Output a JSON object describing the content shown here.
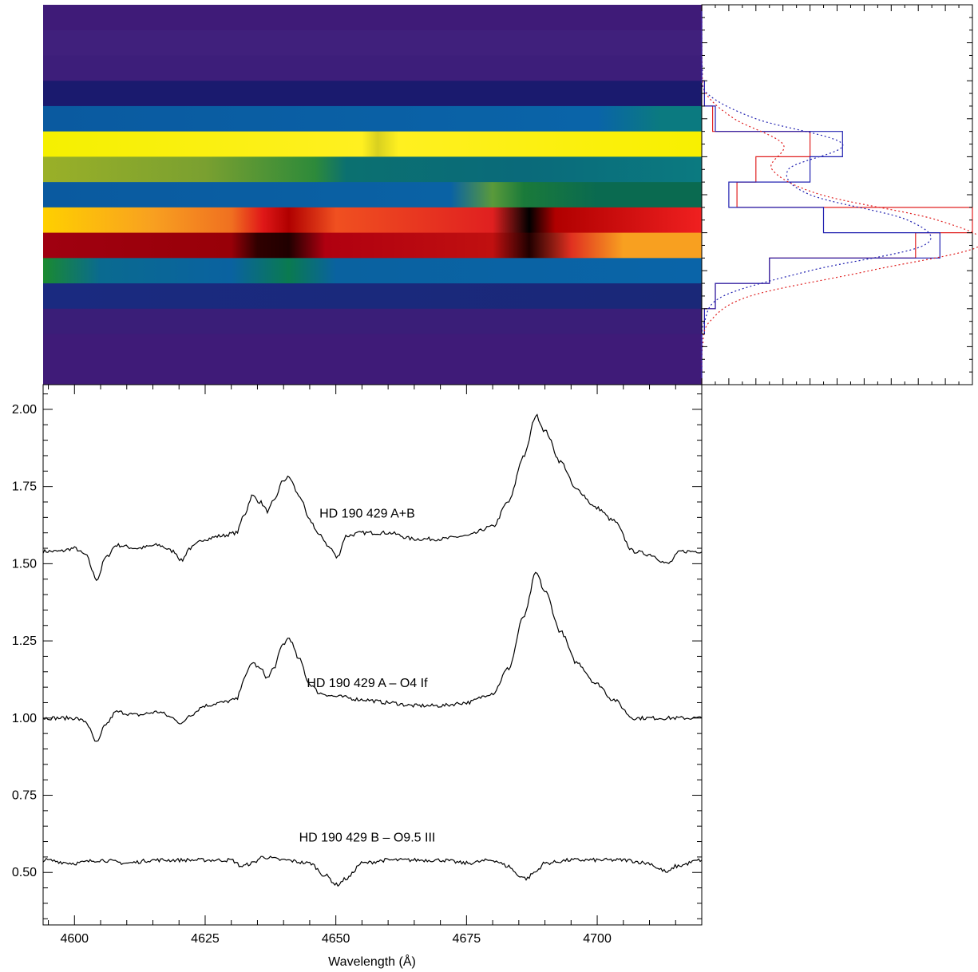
{
  "chart_data": [
    {
      "type": "heatmap",
      "xlim": [
        4594,
        4720
      ],
      "rows": [
        {
          "segments": [
            [
              4594,
              "#3f1b78"
            ],
            [
              4720,
              "#3f1b78"
            ]
          ]
        },
        {
          "segments": [
            [
              4594,
              "#40207c"
            ],
            [
              4720,
              "#40207c"
            ]
          ]
        },
        {
          "segments": [
            [
              4594,
              "#3d1e7a"
            ],
            [
              4720,
              "#3d1e7a"
            ]
          ]
        },
        {
          "segments": [
            [
              4594,
              "#1a1a6e"
            ],
            [
              4720,
              "#1a1a6e"
            ]
          ]
        },
        {
          "segments": [
            [
              4594,
              "#0a5aa0"
            ],
            [
              4700,
              "#0a64a8"
            ],
            [
              4712,
              "#0b7a80"
            ],
            [
              4720,
              "#0b7a80"
            ]
          ]
        },
        {
          "segments": [
            [
              4594,
              "#f5f000"
            ],
            [
              4655,
              "#fff020"
            ],
            [
              4658,
              "#d8d020"
            ],
            [
              4662,
              "#fff020"
            ],
            [
              4720,
              "#f8f000"
            ]
          ]
        },
        {
          "segments": [
            [
              4594,
              "#9ab028"
            ],
            [
              4625,
              "#7aa030"
            ],
            [
              4646,
              "#2d8a3a"
            ],
            [
              4652,
              "#0b7070"
            ],
            [
              4686,
              "#0a6a7a"
            ],
            [
              4720,
              "#0b7a80"
            ]
          ]
        },
        {
          "segments": [
            [
              4594,
              "#0a5aa0"
            ],
            [
              4672,
              "#0a62a4"
            ],
            [
              4680,
              "#5a9a3a"
            ],
            [
              4686,
              "#1a7a3a"
            ],
            [
              4700,
              "#0a6a50"
            ],
            [
              4720,
              "#0a6a50"
            ]
          ]
        },
        {
          "segments": [
            [
              4594,
              "#ffd000"
            ],
            [
              4615,
              "#f8a020"
            ],
            [
              4630,
              "#f07020"
            ],
            [
              4636,
              "#e01818"
            ],
            [
              4641,
              "#b00000"
            ],
            [
              4650,
              "#f05020"
            ],
            [
              4680,
              "#e02020"
            ],
            [
              4687,
              "#000000"
            ],
            [
              4692,
              "#b00000"
            ],
            [
              4720,
              "#f02020"
            ]
          ]
        },
        {
          "segments": [
            [
              4594,
              "#a00010"
            ],
            [
              4630,
              "#980008"
            ],
            [
              4635,
              "#300000"
            ],
            [
              4641,
              "#200000"
            ],
            [
              4648,
              "#b00010"
            ],
            [
              4680,
              "#c01010"
            ],
            [
              4687,
              "#200000"
            ],
            [
              4695,
              "#e03020"
            ],
            [
              4705,
              "#f8a020"
            ],
            [
              4720,
              "#f8a020"
            ]
          ]
        },
        {
          "segments": [
            [
              4594,
              "#1a8a30"
            ],
            [
              4605,
              "#0a6a90"
            ],
            [
              4630,
              "#0a62a0"
            ],
            [
              4641,
              "#0a7a50"
            ],
            [
              4650,
              "#0a62a0"
            ],
            [
              4720,
              "#0a64a8"
            ]
          ]
        },
        {
          "segments": [
            [
              4594,
              "#1a2a80"
            ],
            [
              4720,
              "#1a2878"
            ]
          ]
        },
        {
          "segments": [
            [
              4594,
              "#3a1e78"
            ],
            [
              4720,
              "#3a1e78"
            ]
          ]
        },
        {
          "segments": [
            [
              4594,
              "#3f1b78"
            ],
            [
              4720,
              "#3f1b78"
            ]
          ]
        },
        {
          "segments": [
            [
              4594,
              "#3f1b78"
            ],
            [
              4720,
              "#3f1b78"
            ]
          ]
        }
      ]
    },
    {
      "type": "line",
      "xlim": [
        0,
        1
      ],
      "ylim": [
        0,
        15
      ],
      "series": [
        {
          "color": "#e02020",
          "style": "step",
          "values": [
            0,
            0,
            0,
            0.01,
            0.04,
            0.4,
            0.2,
            0.13,
            1.0,
            0.79,
            0.25,
            0.05,
            0.01,
            0,
            0
          ]
        },
        {
          "color": "#2020b0",
          "style": "step",
          "values": [
            0,
            0,
            0,
            0.01,
            0.05,
            0.52,
            0.4,
            0.1,
            0.45,
            0.88,
            0.25,
            0.05,
            0.01,
            0,
            0
          ]
        },
        {
          "color": "#e02020",
          "style": "dotted",
          "values": [
            0,
            0,
            0.002,
            0.015,
            0.12,
            0.3,
            0.26,
            0.44,
            0.87,
            1.03,
            0.62,
            0.18,
            0.03,
            0.003,
            0
          ]
        },
        {
          "color": "#2020b0",
          "style": "dotted",
          "values": [
            0,
            0,
            0.002,
            0.02,
            0.2,
            0.52,
            0.32,
            0.4,
            0.76,
            0.82,
            0.4,
            0.08,
            0.01,
            0.001,
            0
          ]
        }
      ]
    },
    {
      "type": "line",
      "xlabel": "Wavelength (Å)",
      "xlim": [
        4594,
        4720
      ],
      "ylim": [
        0.33,
        2.08
      ],
      "xticks": [
        4600,
        4625,
        4650,
        4675,
        4700
      ],
      "yticks": [
        0.5,
        0.75,
        1.0,
        1.25,
        1.5,
        1.75,
        2.0
      ],
      "xtick_labels": [
        "4600",
        "4625",
        "4650",
        "4675",
        "4700"
      ],
      "ytick_labels": [
        "0.50",
        "0.75",
        "1.00",
        "1.25",
        "1.50",
        "1.75",
        "2.00"
      ],
      "annotations": [
        {
          "text": "HD 190 429 A+B",
          "x": 4656,
          "y": 1.65
        },
        {
          "text": "HD 190 429 A – O4 If",
          "x": 4656,
          "y": 1.1
        },
        {
          "text": "HD 190 429 B – O9.5 III",
          "x": 4656,
          "y": 0.6
        }
      ],
      "series": [
        {
          "name": "HD 190 429 A+B",
          "x": [
            4594,
            4597,
            4600,
            4602,
            4604.3,
            4606,
            4608,
            4612,
            4616,
            4619,
            4620.5,
            4622,
            4625,
            4628,
            4631,
            4632.5,
            4634,
            4635.5,
            4637,
            4638,
            4640,
            4641,
            4643,
            4645,
            4647,
            4649,
            4650.2,
            4652,
            4655,
            4660,
            4665,
            4670,
            4675,
            4680,
            4683,
            4686,
            4688.3,
            4690,
            4693,
            4696,
            4700,
            4703,
            4707,
            4710,
            4713.5,
            4716,
            4720
          ],
          "y": [
            1.54,
            1.54,
            1.55,
            1.53,
            1.45,
            1.52,
            1.56,
            1.55,
            1.56,
            1.54,
            1.51,
            1.55,
            1.58,
            1.59,
            1.6,
            1.66,
            1.72,
            1.7,
            1.67,
            1.7,
            1.77,
            1.78,
            1.72,
            1.64,
            1.59,
            1.55,
            1.52,
            1.59,
            1.6,
            1.6,
            1.58,
            1.58,
            1.59,
            1.62,
            1.7,
            1.85,
            1.98,
            1.93,
            1.83,
            1.74,
            1.68,
            1.64,
            1.54,
            1.53,
            1.5,
            1.54,
            1.54
          ]
        },
        {
          "name": "HD 190 429 A – O4 If",
          "x": [
            4594,
            4597,
            4600,
            4602,
            4604.3,
            4606,
            4608,
            4612,
            4616,
            4619,
            4620.5,
            4622,
            4625,
            4628,
            4631,
            4632.5,
            4634,
            4635.5,
            4637,
            4638,
            4640,
            4641,
            4643,
            4645,
            4647,
            4650,
            4655,
            4660,
            4665,
            4670,
            4675,
            4680,
            4683,
            4686,
            4688.3,
            4690,
            4693,
            4696,
            4700,
            4703,
            4707,
            4710,
            4713.5,
            4716,
            4720
          ],
          "y": [
            1.0,
            1.0,
            1.0,
            0.99,
            0.92,
            0.98,
            1.02,
            1.01,
            1.02,
            1.0,
            0.98,
            1.01,
            1.04,
            1.05,
            1.06,
            1.13,
            1.18,
            1.16,
            1.13,
            1.16,
            1.24,
            1.26,
            1.19,
            1.11,
            1.08,
            1.07,
            1.06,
            1.05,
            1.04,
            1.04,
            1.05,
            1.08,
            1.16,
            1.33,
            1.47,
            1.41,
            1.28,
            1.18,
            1.11,
            1.06,
            1.0,
            1.0,
            1.0,
            1.0,
            1.0
          ]
        },
        {
          "name": "HD 190 429 B – O9.5 III",
          "x": [
            4594,
            4600,
            4605,
            4610,
            4615,
            4620,
            4625,
            4630,
            4632,
            4634,
            4636,
            4640,
            4645,
            4648,
            4650.2,
            4652,
            4655,
            4660,
            4665,
            4670,
            4675,
            4680,
            4683,
            4685,
            4686.5,
            4688,
            4690,
            4695,
            4700,
            4705,
            4710,
            4712,
            4713.5,
            4715,
            4720
          ],
          "y": [
            0.54,
            0.53,
            0.54,
            0.53,
            0.54,
            0.54,
            0.54,
            0.54,
            0.52,
            0.53,
            0.55,
            0.54,
            0.53,
            0.49,
            0.46,
            0.48,
            0.53,
            0.54,
            0.54,
            0.54,
            0.53,
            0.54,
            0.52,
            0.49,
            0.48,
            0.5,
            0.53,
            0.54,
            0.54,
            0.54,
            0.53,
            0.51,
            0.5,
            0.52,
            0.54
          ]
        }
      ]
    }
  ]
}
